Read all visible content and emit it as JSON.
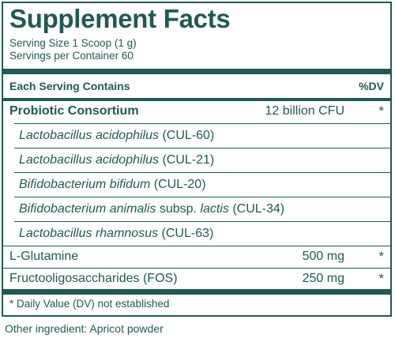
{
  "label": {
    "title": "Supplement Facts",
    "serving_size": "Serving Size 1 Scoop (1 g)",
    "servings_per_container": "Servings per Container 60",
    "col_contains": "Each Serving Contains",
    "col_dv": "%DV",
    "rows": [
      {
        "name": "Probiotic Consortium",
        "amount": "12 billion CFU",
        "dv": "*"
      },
      {
        "name_italic": "Lactobacillus acidophilus",
        "name_rest": " (CUL-60)"
      },
      {
        "name_italic": "Lactobacillus acidophilus",
        "name_rest": " (CUL-21)"
      },
      {
        "name_italic": "Bifidobacterium bifidum",
        "name_rest": " (CUL-20)"
      },
      {
        "name_italic": "Bifidobacterium animalis",
        "name_mid": " subsp. ",
        "name_italic2": "lactis",
        "name_rest": " (CUL-34)"
      },
      {
        "name_italic": "Lactobacillus rhamnosus",
        "name_rest": " (CUL-63)"
      },
      {
        "name": "L-Glutamine",
        "amount": "500 mg",
        "dv": "*"
      },
      {
        "name": "Fructooligosaccharides (FOS)",
        "amount": "250 mg",
        "dv": "*"
      }
    ],
    "footnote": "* Daily Value (DV) not established",
    "other_ingredients": "Other ingredient: Apricot powder"
  },
  "colors": {
    "ink": "#1f5a54",
    "background": "#ffffff"
  }
}
